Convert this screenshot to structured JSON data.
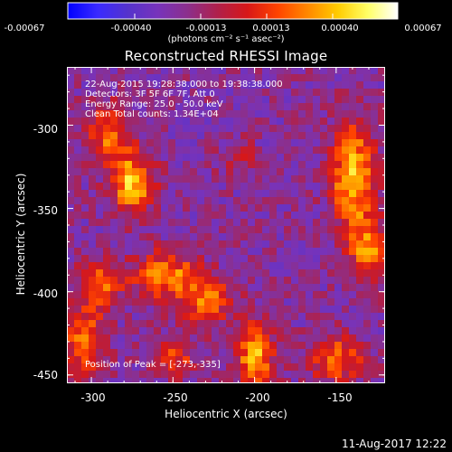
{
  "colorbar": {
    "tick_labels": [
      "-0.00067",
      "-0.00040",
      "-0.00013",
      "0.00013",
      "0.00040",
      "0.00067"
    ],
    "unit_label": "(photons cm⁻² s⁻¹ asec⁻²)",
    "colors": [
      "#0000ff",
      "#3a2aff",
      "#5533cc",
      "#7733bb",
      "#8c2f8c",
      "#b0204a",
      "#d81818",
      "#ff4400",
      "#ff8800",
      "#ffcc00",
      "#ffff66",
      "#ffffff"
    ]
  },
  "chart_data": {
    "type": "heatmap",
    "title": "Reconstructed RHESSI Image",
    "xlabel": "Heliocentric X (arcsec)",
    "ylabel": "Heliocentric Y (arcsec)",
    "xlim": [
      -315,
      -120
    ],
    "ylim": [
      -455,
      -265
    ],
    "xticks": [
      -300,
      -250,
      -200,
      -150
    ],
    "yticks": [
      -300,
      -350,
      -400,
      -450
    ],
    "x_tick_labels": [
      "-300",
      "-250",
      "-200",
      "-150"
    ],
    "y_tick_labels": [
      "-300",
      "-350",
      "-400",
      "-450"
    ],
    "colormap_range": [
      -0.00067,
      0.00067
    ],
    "annotations": {
      "time": "22-Aug-2015 19:28:38.000 to 19:38:38.000",
      "detectors": "Detectors: 3F 5F 6F 7F, Att 0",
      "energy": "Energy Range: 25.0 - 50.0 keV",
      "clean": "Clean     Total counts: 1.34E+04",
      "peak": "Position of Peak = [-273,-335]"
    },
    "peak_position": [
      -273,
      -335
    ],
    "source_blobs": [
      {
        "x": -275,
        "y": -335,
        "amp": 0.00067,
        "sx": 9,
        "sy": 12
      },
      {
        "x": -290,
        "y": -305,
        "amp": 0.00045,
        "sx": 10,
        "sy": 12
      },
      {
        "x": -255,
        "y": -390,
        "amp": 0.0005,
        "sx": 14,
        "sy": 10
      },
      {
        "x": -230,
        "y": -405,
        "amp": 0.00045,
        "sx": 12,
        "sy": 10
      },
      {
        "x": -200,
        "y": -440,
        "amp": 0.0006,
        "sx": 8,
        "sy": 14
      },
      {
        "x": -140,
        "y": -330,
        "amp": 0.00067,
        "sx": 9,
        "sy": 22
      },
      {
        "x": -130,
        "y": -375,
        "amp": 0.0005,
        "sx": 8,
        "sy": 14
      },
      {
        "x": -150,
        "y": -440,
        "amp": 0.00045,
        "sx": 12,
        "sy": 10
      },
      {
        "x": -295,
        "y": -395,
        "amp": 0.00045,
        "sx": 9,
        "sy": 10
      },
      {
        "x": -305,
        "y": -430,
        "amp": 0.0005,
        "sx": 9,
        "sy": 14
      },
      {
        "x": -210,
        "y": -320,
        "amp": 0.0002,
        "sx": 8,
        "sy": 8
      },
      {
        "x": -250,
        "y": -440,
        "amp": 0.00035,
        "sx": 10,
        "sy": 8
      }
    ]
  },
  "footer": {
    "timestamp": "11-Aug-2017 12:22"
  }
}
